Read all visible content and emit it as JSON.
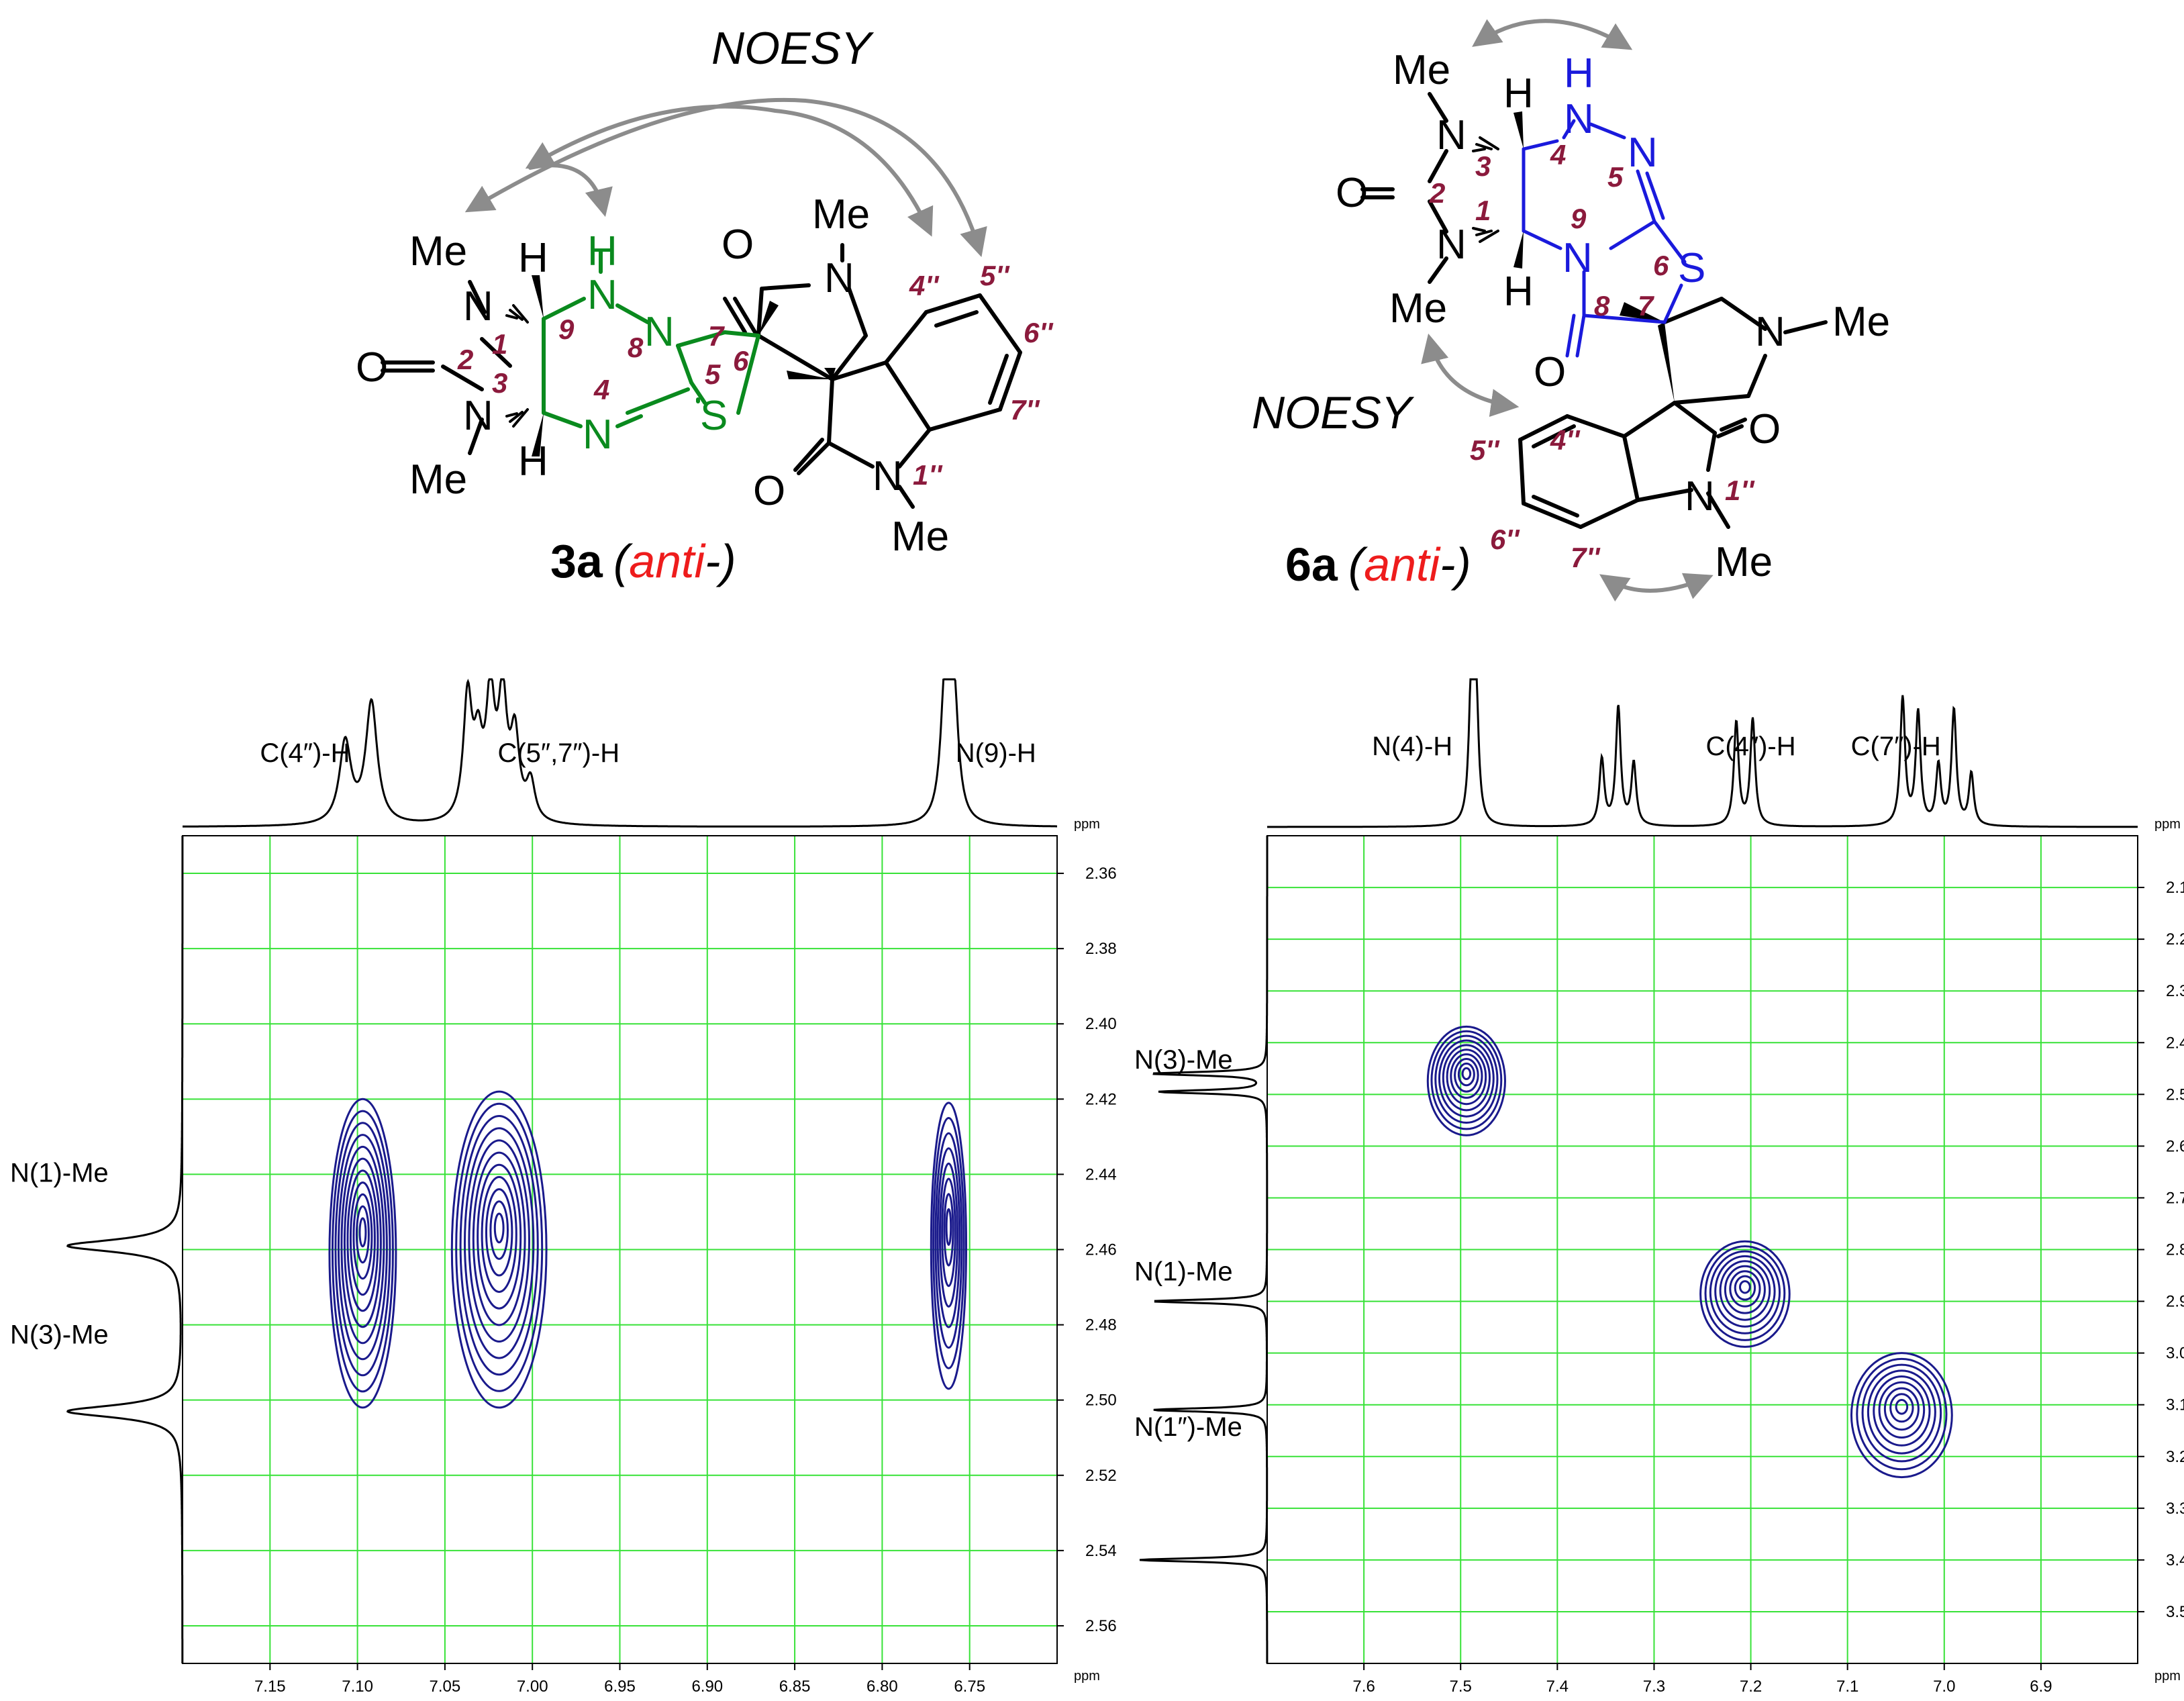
{
  "colors": {
    "black": "#000000",
    "green_structure": "#0a8a1e",
    "blue_structure": "#1a1adc",
    "locant": "#8b1a3c",
    "anti": "#ee1c1c",
    "arrow": "#8c8c8c",
    "grid": "#38e238",
    "contour": "#1a1a8c"
  },
  "structure_3a": {
    "noesy_label": "NOESY",
    "compound": "3a",
    "paren_open": "(",
    "anti": "anti",
    "paren_close": "-)",
    "atoms": {
      "me_n1": "Me",
      "n1": "N",
      "h_top": "H",
      "nh9": "N",
      "h9": "H",
      "o_c2": "O",
      "n3": "N",
      "me_n3": "Me",
      "h_bot": "H",
      "n4": "N",
      "n8": "N",
      "s": "S",
      "o7": "O",
      "n_pyr": "N",
      "me_pyr": "Me",
      "o_ind": "O",
      "n_ind": "N",
      "me_ind": "Me"
    },
    "locants": {
      "l1": "1",
      "l2": "2",
      "l3": "3",
      "l4": "4",
      "l5": "5",
      "l6": "6",
      "l7": "7",
      "l8": "8",
      "l9": "9",
      "l4p": "4''",
      "l5p": "5''",
      "l6p": "6''",
      "l7p": "7''",
      "l1p": "1''"
    }
  },
  "structure_6a": {
    "noesy_label": "NOESY",
    "compound": "6a",
    "paren_open": "(",
    "anti": "anti",
    "paren_close": "-)",
    "atoms": {
      "me_n3": "Me",
      "n3": "N",
      "h_top": "H",
      "nh4": "N",
      "h4": "H",
      "n5": "N",
      "o_c2": "O",
      "n1": "N",
      "me_n1": "Me",
      "h_bot": "H",
      "n9": "N",
      "s": "S",
      "o8": "O",
      "n_pyr": "N",
      "me_pyr": "Me",
      "o_ind": "O",
      "n_ind": "N",
      "me_ind": "Me"
    },
    "locants": {
      "l1": "1",
      "l2": "2",
      "l3": "3",
      "l4": "4",
      "l5": "5",
      "l6": "6",
      "l7": "7",
      "l8": "8",
      "l9": "9",
      "l4p": "4''",
      "l5p": "5''",
      "l6p": "6''",
      "l7p": "7''",
      "l1p": "1''"
    }
  },
  "chart_data": [
    {
      "type": "heatmap",
      "unit_label": "ppm",
      "xlim": [
        7.2,
        6.7
      ],
      "x_ticks": [
        7.15,
        7.1,
        7.05,
        7.0,
        6.95,
        6.9,
        6.85,
        6.8,
        6.75
      ],
      "x_tick_labels": [
        "7.15",
        "7.10",
        "7.05",
        "7.00",
        "6.95",
        "6.90",
        "6.85",
        "6.80",
        "6.75"
      ],
      "ylim": [
        2.35,
        2.57
      ],
      "y_ticks": [
        2.36,
        2.38,
        2.4,
        2.42,
        2.44,
        2.46,
        2.48,
        2.5,
        2.52,
        2.54,
        2.56
      ],
      "y_tick_labels": [
        "2.36",
        "2.38",
        "2.40",
        "2.42",
        "2.44",
        "2.46",
        "2.48",
        "2.50",
        "2.52",
        "2.54",
        "2.56"
      ],
      "grid": true,
      "top_labels": [
        {
          "text": "C(4″)-H",
          "x": 7.13
        },
        {
          "text": "C(5″,7″)-H",
          "x": 6.985
        },
        {
          "text": "N(9)-H",
          "x": 6.735
        }
      ],
      "side_labels": [
        {
          "text": "N(1)-Me",
          "y": 2.442
        },
        {
          "text": "N(3)-Me",
          "y": 2.485
        }
      ],
      "top_peaks": [
        {
          "x": 7.107,
          "h": 0.55,
          "w": 0.004
        },
        {
          "x": 7.092,
          "h": 0.82,
          "w": 0.004
        },
        {
          "x": 7.037,
          "h": 0.82,
          "w": 0.003
        },
        {
          "x": 7.031,
          "h": 0.45,
          "w": 0.003
        },
        {
          "x": 7.024,
          "h": 0.8,
          "w": 0.003
        },
        {
          "x": 7.017,
          "h": 0.8,
          "w": 0.003
        },
        {
          "x": 7.01,
          "h": 0.55,
          "w": 0.003
        },
        {
          "x": 7.001,
          "h": 0.26,
          "w": 0.003
        },
        {
          "x": 6.764,
          "h": 0.92,
          "w": 0.003
        },
        {
          "x": 6.759,
          "h": 0.85,
          "w": 0.003
        }
      ],
      "side_peaks": [
        {
          "y": 2.459,
          "h": 0.95,
          "w": 0.002
        },
        {
          "y": 2.503,
          "h": 0.95,
          "w": 0.002
        }
      ],
      "cross_peaks": [
        {
          "x": 7.097,
          "y": 2.461,
          "rx": 0.019,
          "ry": 0.041,
          "levels": 11
        },
        {
          "x": 7.019,
          "y": 2.46,
          "rx": 0.027,
          "ry": 0.042,
          "levels": 11
        },
        {
          "x": 6.762,
          "y": 2.459,
          "rx": 0.01,
          "ry": 0.038,
          "levels": 8
        }
      ]
    },
    {
      "type": "heatmap",
      "unit_label": "ppm",
      "xlim": [
        7.7,
        6.8
      ],
      "x_ticks": [
        7.6,
        7.5,
        7.4,
        7.3,
        7.2,
        7.1,
        7.0,
        6.9
      ],
      "x_tick_labels": [
        "7.6",
        "7.5",
        "7.4",
        "7.3",
        "7.2",
        "7.1",
        "7.0",
        "6.9"
      ],
      "ylim": [
        2.0,
        3.6
      ],
      "y_ticks": [
        2.1,
        2.2,
        2.3,
        2.4,
        2.5,
        2.6,
        2.7,
        2.8,
        2.9,
        3.0,
        3.1,
        3.2,
        3.3,
        3.4,
        3.5
      ],
      "y_tick_labels": [
        "2.1",
        "2.2",
        "2.3",
        "2.4",
        "2.5",
        "2.6",
        "2.7",
        "2.8",
        "2.9",
        "3.0",
        "3.1",
        "3.2",
        "3.3",
        "3.4",
        "3.5"
      ],
      "grid": true,
      "top_labels": [
        {
          "text": "N(4)-H",
          "x": 7.55
        },
        {
          "text": "C(4″)-H",
          "x": 7.2
        },
        {
          "text": "C(7″)-H",
          "x": 7.05
        }
      ],
      "side_labels": [
        {
          "text": "N(3)-Me",
          "y": 2.45
        },
        {
          "text": "N(1)-Me",
          "y": 2.86
        },
        {
          "text": "N(1″)-Me",
          "y": 3.16
        }
      ],
      "top_peaks": [
        {
          "x": 7.489,
          "h": 0.92,
          "w": 0.003
        },
        {
          "x": 7.484,
          "h": 0.85,
          "w": 0.003
        },
        {
          "x": 7.354,
          "h": 0.45,
          "w": 0.003
        },
        {
          "x": 7.337,
          "h": 0.8,
          "w": 0.003
        },
        {
          "x": 7.321,
          "h": 0.42,
          "w": 0.003
        },
        {
          "x": 7.215,
          "h": 0.7,
          "w": 0.003
        },
        {
          "x": 7.198,
          "h": 0.72,
          "w": 0.003
        },
        {
          "x": 7.043,
          "h": 0.86,
          "w": 0.003
        },
        {
          "x": 7.027,
          "h": 0.76,
          "w": 0.003
        },
        {
          "x": 7.006,
          "h": 0.4,
          "w": 0.003
        },
        {
          "x": 6.99,
          "h": 0.78,
          "w": 0.003
        },
        {
          "x": 6.972,
          "h": 0.35,
          "w": 0.003
        }
      ],
      "side_peaks": [
        {
          "y": 2.46,
          "h": 0.85,
          "w": 0.004
        },
        {
          "y": 2.495,
          "h": 0.8,
          "w": 0.004
        },
        {
          "y": 2.9,
          "h": 0.85,
          "w": 0.004
        },
        {
          "y": 3.11,
          "h": 0.85,
          "w": 0.004
        },
        {
          "y": 3.4,
          "h": 0.95,
          "w": 0.004
        }
      ],
      "cross_peaks": [
        {
          "x": 7.494,
          "y": 2.474,
          "rx": 0.04,
          "ry": 0.105,
          "levels": 10
        },
        {
          "x": 7.206,
          "y": 2.886,
          "rx": 0.046,
          "ry": 0.102,
          "levels": 9
        },
        {
          "x": 7.044,
          "y": 3.12,
          "rx": 0.052,
          "ry": 0.12,
          "levels": 9
        }
      ]
    }
  ]
}
